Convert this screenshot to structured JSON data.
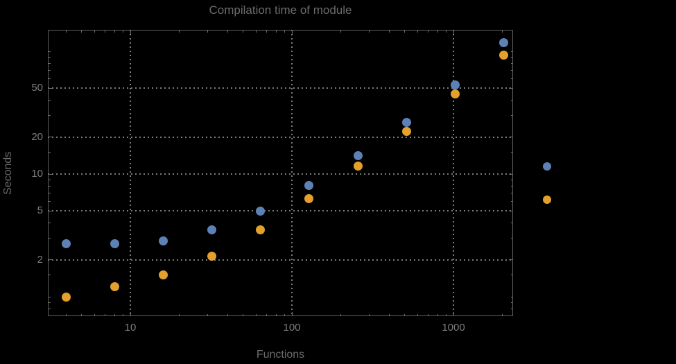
{
  "colors": {
    "background": "#000000",
    "frame": "#5e5e5e",
    "grid": "#7d7d7d",
    "tick_label": "#7d7d7d",
    "title_color": "#6b6b6b",
    "series_blue": "#5e81b5",
    "series_orange": "#e3a02c"
  },
  "chart_data": {
    "type": "scatter",
    "title": "Compilation time of module",
    "xlabel": "Functions",
    "ylabel": "Seconds",
    "x_scale": "log",
    "y_scale": "log",
    "grid": true,
    "grid_style": "dotted",
    "xlim": [
      3.1,
      2350
    ],
    "ylim": [
      0.72,
      150
    ],
    "x": [
      4,
      8,
      16,
      32,
      64,
      128,
      256,
      512,
      1024,
      2048
    ],
    "series": [
      {
        "name": "series-blue",
        "color": "#5e81b5",
        "values": [
          2.7,
          2.7,
          2.85,
          3.5,
          5.0,
          8.1,
          14.2,
          26.5,
          53,
          117
        ]
      },
      {
        "name": "series-orange",
        "color": "#e3a02c",
        "values": [
          1.0,
          1.2,
          1.5,
          2.15,
          3.5,
          6.3,
          11.6,
          22.3,
          45,
          93
        ]
      }
    ],
    "x_ticks_major": [
      10,
      100,
      1000
    ],
    "x_tick_labels": [
      "10",
      "100",
      "1000"
    ],
    "y_ticks_major": [
      2,
      5,
      10,
      20,
      50
    ],
    "y_tick_labels": [
      "2",
      "5",
      "10",
      "20",
      "50"
    ],
    "x_ticks_minor": [
      4,
      5,
      6,
      7,
      8,
      9,
      20,
      30,
      40,
      50,
      60,
      70,
      80,
      90,
      200,
      300,
      400,
      500,
      600,
      700,
      800,
      900,
      2000
    ],
    "y_ticks_minor": [
      0.8,
      0.9,
      1,
      1.5,
      3,
      4,
      6,
      7,
      8,
      9,
      15,
      30,
      40,
      60,
      70,
      80,
      90,
      100
    ],
    "legend_position": "right-outside"
  },
  "legend": {
    "markers": [
      {
        "name": "legend-marker-blue",
        "color": "#5e81b5",
        "label": ""
      },
      {
        "name": "legend-marker-orange",
        "color": "#e3a02c",
        "label": ""
      }
    ]
  }
}
